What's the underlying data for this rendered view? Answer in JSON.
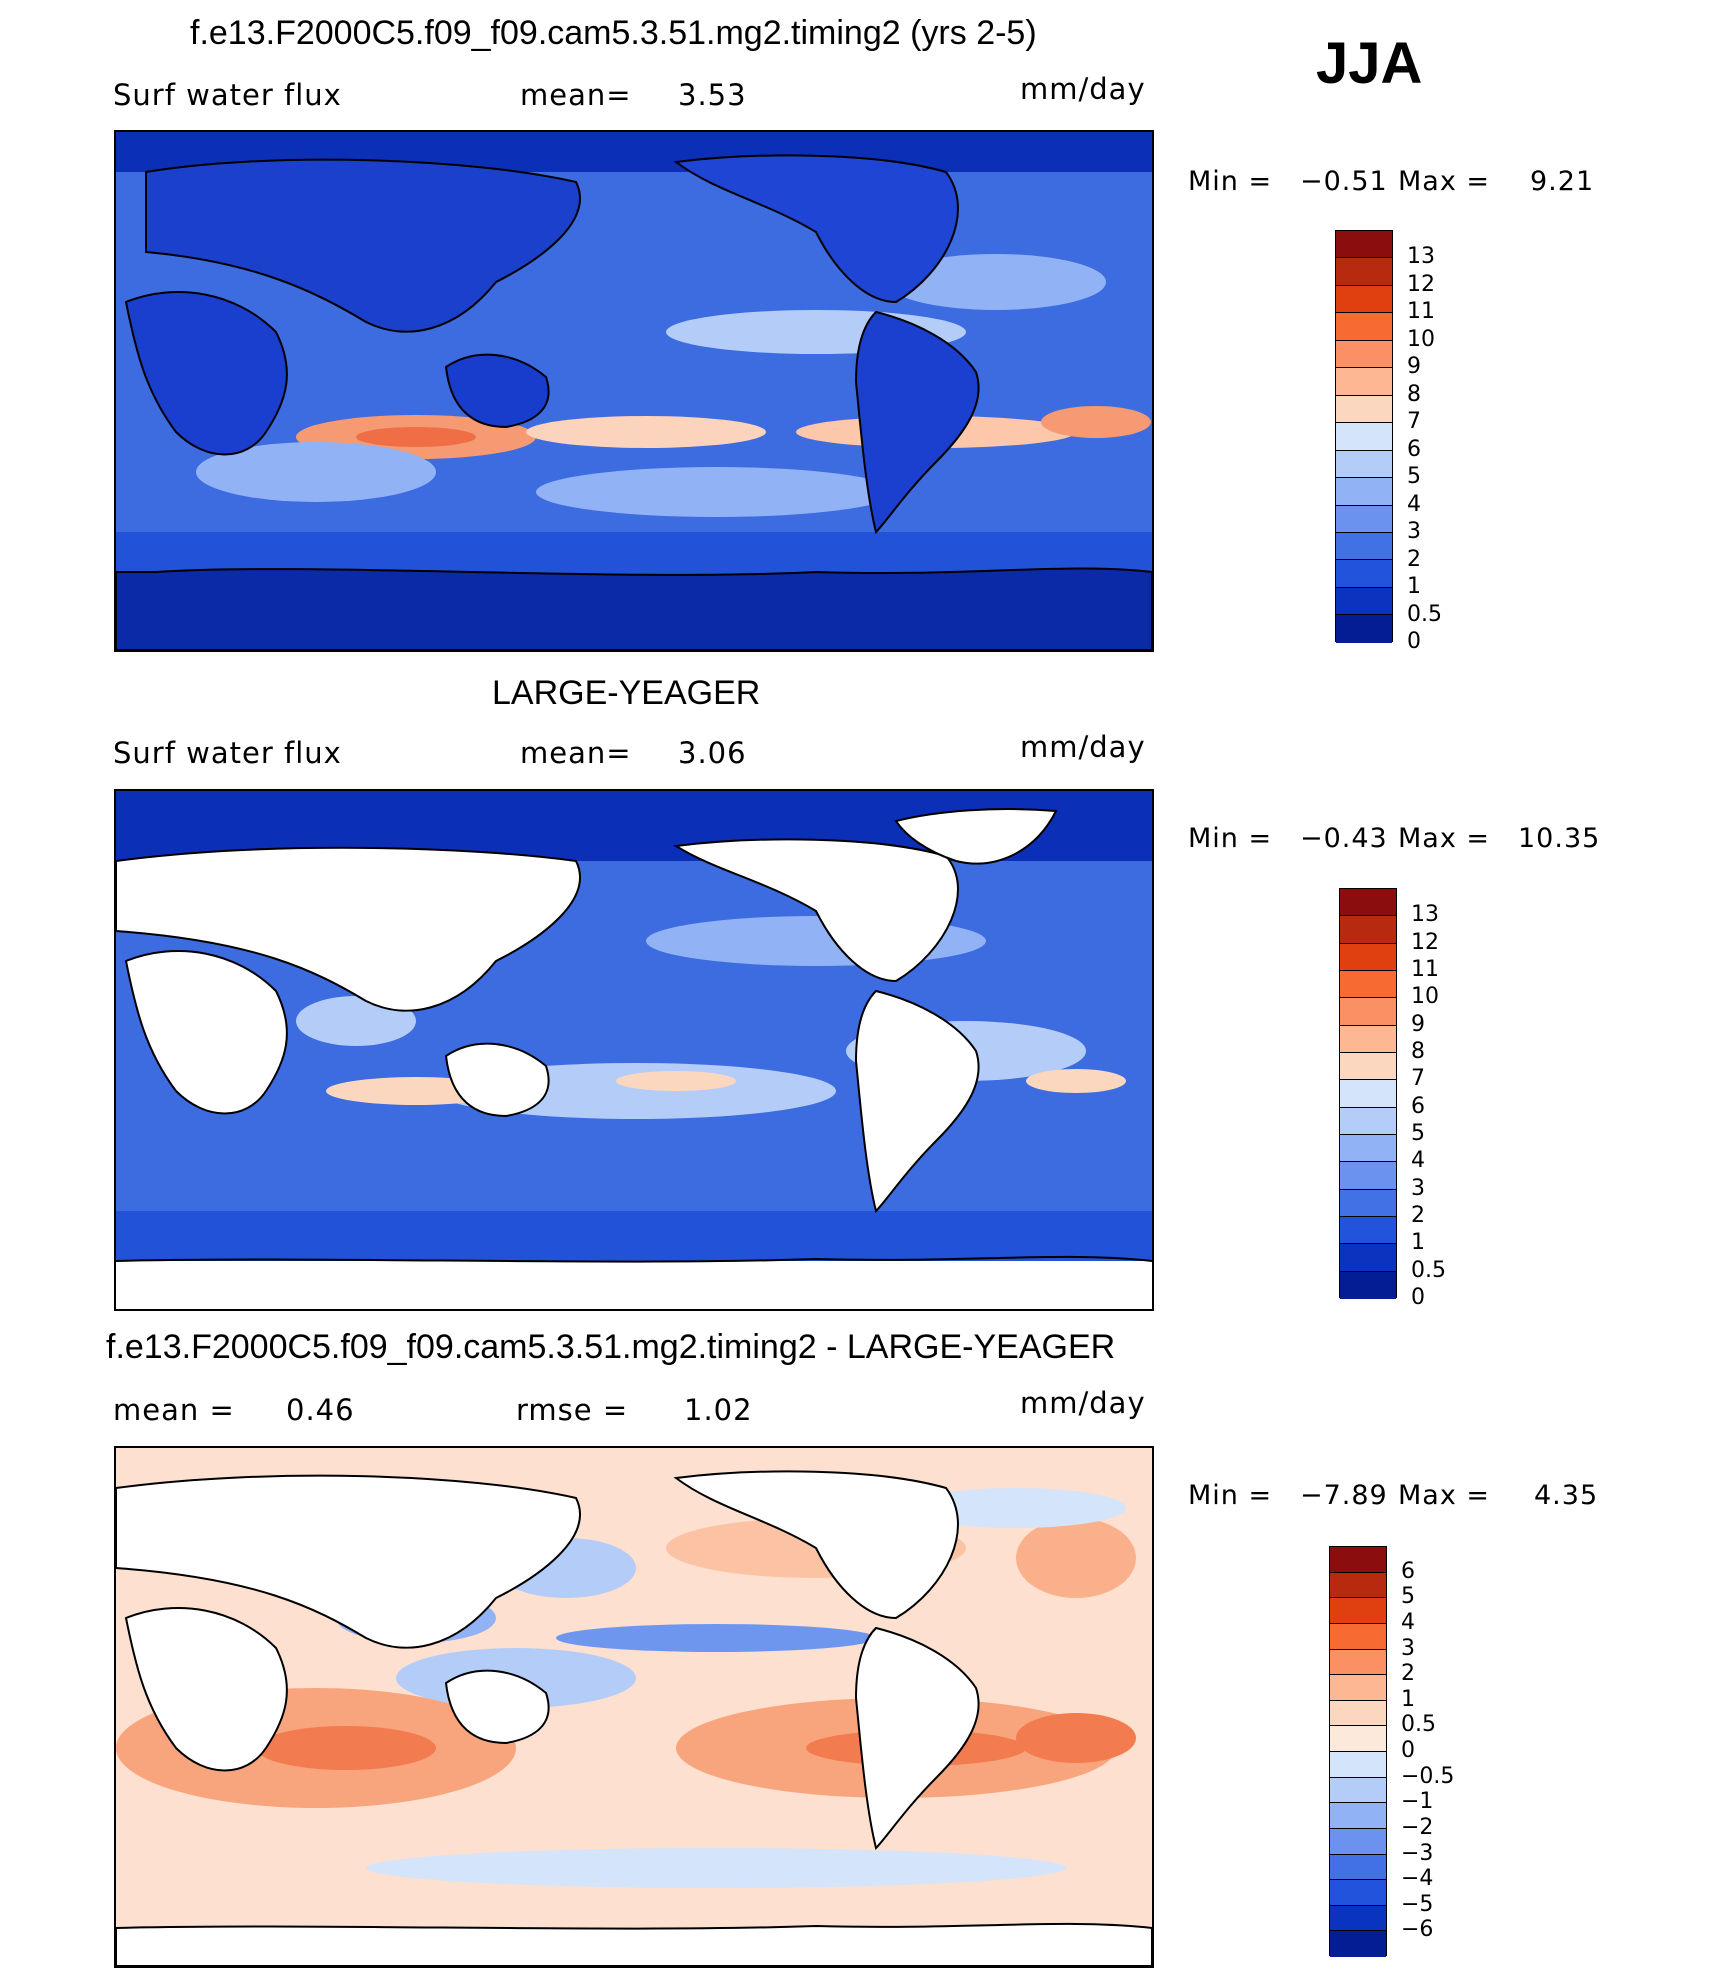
{
  "season": "JJA",
  "panels": [
    {
      "title": "f.e13.F2000C5.f09_f09.cam5.3.51.mg2.timing2 (yrs 2-5)",
      "left_label": "Surf  water  flux",
      "mid_label": "mean=",
      "mid_value": "3.53",
      "units": "mm/day",
      "min_label": "Min  =",
      "min_value": "−0.51",
      "max_label": "Max  =",
      "max_value": "9.21",
      "colorbar_labels": [
        "13",
        "12",
        "11",
        "10",
        "9",
        "8",
        "7",
        "6",
        "5",
        "4",
        "3",
        "2",
        "1",
        "0.5",
        "0"
      ],
      "colorbar_colors": [
        "#8c0d0d",
        "#b82a0f",
        "#e0400f",
        "#f76a32",
        "#fb9064",
        "#fdb793",
        "#fcd7c0",
        "#d3e4fb",
        "#b4cdf8",
        "#91b2f4",
        "#6b92ee",
        "#4271e6",
        "#2153dc",
        "#0a33c0",
        "#041c94"
      ],
      "ocean_color": "#3f6ce0",
      "land_color": "#1c3fcf"
    },
    {
      "title": "LARGE-YEAGER",
      "left_label": "Surf  water  flux",
      "mid_label": "mean=",
      "mid_value": "3.06",
      "units": "mm/day",
      "min_label": "Min  =",
      "min_value": "−0.43",
      "max_label": "Max  =",
      "max_value": "10.35",
      "colorbar_labels": [
        "13",
        "12",
        "11",
        "10",
        "9",
        "8",
        "7",
        "6",
        "5",
        "4",
        "3",
        "2",
        "1",
        "0.5",
        "0"
      ],
      "colorbar_colors": [
        "#8c0d0d",
        "#b82a0f",
        "#e0400f",
        "#f76a32",
        "#fb9064",
        "#fdb793",
        "#fcd7c0",
        "#d3e4fb",
        "#b4cdf8",
        "#91b2f4",
        "#6b92ee",
        "#4271e6",
        "#2153dc",
        "#0a33c0",
        "#041c94"
      ],
      "ocean_color": "#3f6ce0",
      "land_color": "#ffffff"
    },
    {
      "title": "f.e13.F2000C5.f09_f09.cam5.3.51.mg2.timing2 - LARGE-YEAGER",
      "left_label": "mean  =",
      "left_value": "0.46",
      "mid_label": "rmse  =",
      "mid_value": "1.02",
      "units": "mm/day",
      "min_label": "Min  =",
      "min_value": "−7.89",
      "max_label": "Max  =",
      "max_value": "4.35",
      "colorbar_labels": [
        "6",
        "5",
        "4",
        "3",
        "2",
        "1",
        "0.5",
        "0",
        "−0.5",
        "−1",
        "−2",
        "−3",
        "−4",
        "−5",
        "−6"
      ],
      "colorbar_colors": [
        "#8c0d0d",
        "#b82a0f",
        "#e0400f",
        "#f76a32",
        "#fb9064",
        "#fdb793",
        "#fcd7c0",
        "#fde9db",
        "#d3e4fb",
        "#b4cdf8",
        "#91b2f4",
        "#6b92ee",
        "#4271e6",
        "#2153dc",
        "#0a33c0",
        "#041c94"
      ],
      "ocean_color": "#fcdcc8",
      "land_color": "#ffffff"
    }
  ]
}
